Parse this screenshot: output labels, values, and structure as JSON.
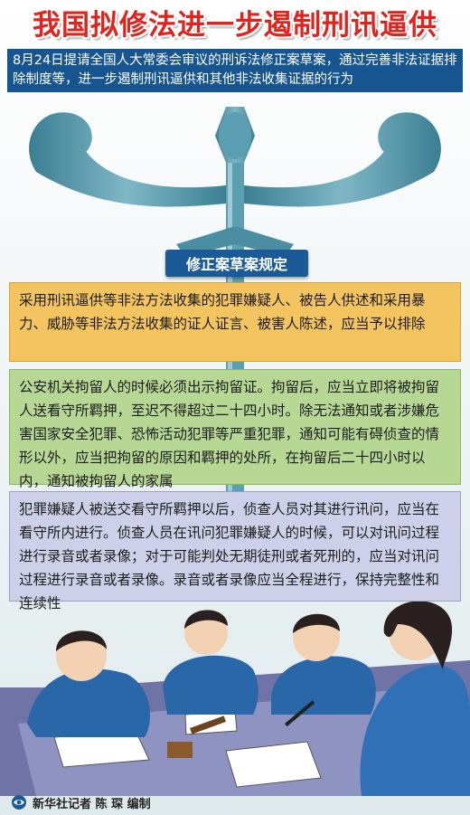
{
  "header": {
    "title": "我国拟修法进一步遏制刑讯逼供",
    "subtitle": "8月24日提请全国人大常委会审议的刑诉法修正案草案，通过完善非法证据排除制度等，进一步遏制刑讯逼供和其他非法收集证据的行为"
  },
  "section": {
    "label": "修正案草案规定"
  },
  "provisions": [
    {
      "text": "采用刑讯逼供等非法方法收集的犯罪嫌疑人、被告人供述和采用暴力、威胁等非法方法收集的证人证言、被害人陈述，应当予以排除",
      "color": "#f3c460"
    },
    {
      "text": "公安机关拘留人的时候必须出示拘留证。拘留后，应当立即将被拘留人送看守所羁押，至迟不得超过二十四小时。除无法通知或者涉嫌危害国家安全犯罪、恐怖活动犯罪等严重犯罪，通知可能有碍侦查的情形以外，应当把拘留的原因和羁押的处所，在拘留后二十四小时以内，通知被拘留人的家属",
      "color": "#b7d795"
    },
    {
      "text": "犯罪嫌疑人被送交看守所羁押以后，侦查人员对其进行讯问，应当在看守所内进行。侦查人员在讯问犯罪嫌疑人的时候，可以对讯问过程进行录音或者录像；对于可能判处无期徒刑或者死刑的，应当对讯问过程进行录音或者录像。录音或者录像应当全程进行，保持完整性和连续性",
      "color": "#cdd0e8"
    }
  ],
  "footer": {
    "credit": "新华社记者 陈 琛 编制"
  },
  "colors": {
    "title_red": "#e0241d",
    "banner_blue": "#16558f",
    "scale_teal": "#4c8ea1"
  }
}
